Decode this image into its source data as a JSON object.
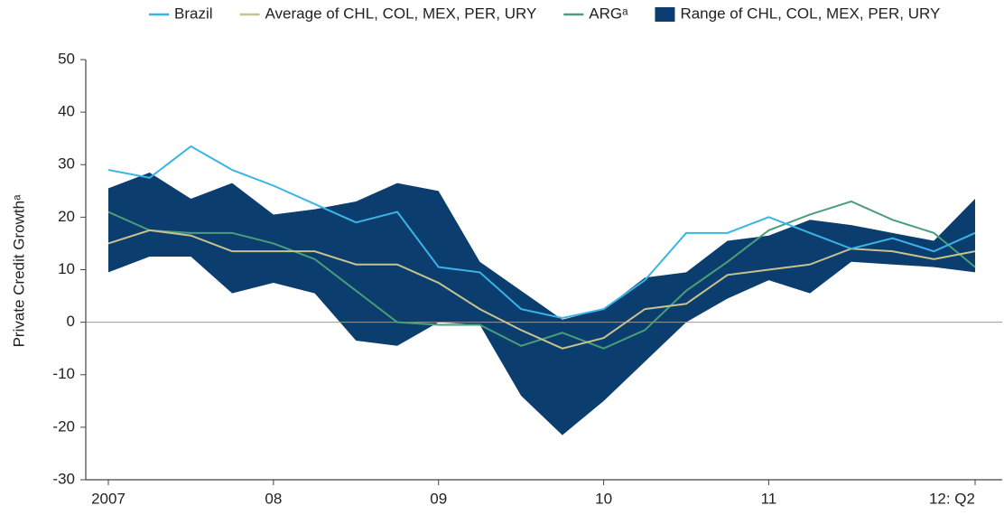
{
  "chart_data": {
    "type": "line",
    "y_label": "Private Credit Growthᵃ",
    "categories": [
      "2007",
      null,
      null,
      null,
      "08",
      null,
      null,
      null,
      "09",
      null,
      null,
      null,
      "10",
      null,
      null,
      null,
      "11",
      null,
      null,
      null,
      null,
      "12: Q2"
    ],
    "range": {
      "name": "Range of CHL, COL, MEX, PER, URY",
      "color": "#0b3d6e",
      "low": [
        9.5,
        12.5,
        12.5,
        5.5,
        7.5,
        5.5,
        -3.5,
        -4.5,
        0,
        -0.5,
        -14,
        -21.5,
        -15,
        -7.5,
        0,
        4.5,
        8,
        5.5,
        11.5,
        11,
        10.5,
        9.5
      ],
      "high": [
        25.5,
        28.5,
        23.5,
        26.5,
        20.5,
        21.5,
        23,
        26.5,
        25,
        11.5,
        6,
        0.5,
        2.5,
        8.5,
        9.5,
        15.5,
        16.5,
        19.5,
        18.5,
        17,
        15.5,
        23.5
      ]
    },
    "series": [
      {
        "name": "Brazil",
        "color": "#3ab4e6",
        "values": [
          29,
          27.5,
          33.5,
          29,
          26,
          22.5,
          19,
          21,
          10.5,
          9.5,
          2.5,
          0.8,
          2.5,
          8,
          17,
          17,
          20,
          17,
          14,
          16,
          13.5,
          17
        ]
      },
      {
        "name": "Average of CHL, COL, MEX, PER, URY",
        "color": "#c8c28f",
        "values": [
          15,
          17.5,
          16.5,
          13.5,
          13.5,
          13.5,
          11,
          11,
          7.5,
          2.5,
          -1.5,
          -5,
          -3,
          2.5,
          3.5,
          9,
          10,
          11,
          14,
          13.5,
          12,
          13.5
        ]
      },
      {
        "name": "ARGᵃ",
        "color": "#4a9e7a",
        "values": [
          21,
          17.5,
          17,
          17,
          15,
          12,
          6,
          0,
          -0.5,
          -0.5,
          -4.5,
          -2,
          -5,
          -1.5,
          6,
          11.5,
          17.5,
          20.5,
          23,
          19.5,
          17,
          10.5
        ]
      }
    ],
    "ylim": [
      -30,
      50
    ],
    "yticks": [
      -30,
      -20,
      -10,
      0,
      10,
      20,
      30,
      40,
      50
    ]
  }
}
